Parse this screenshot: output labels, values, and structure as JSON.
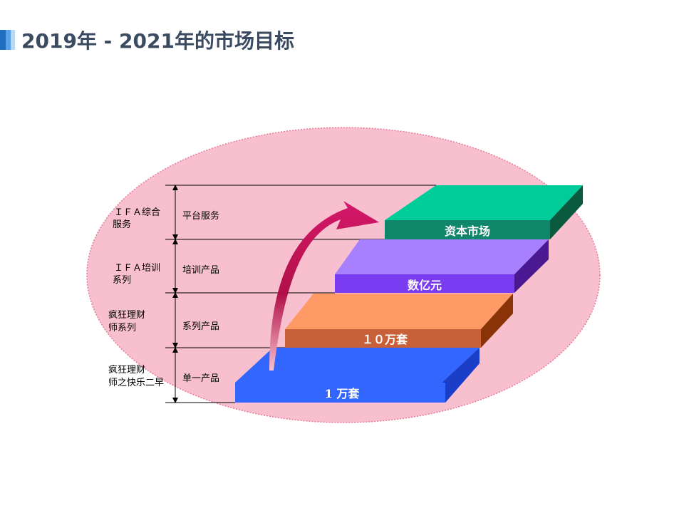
{
  "title": "2019年 - 2021年的市场目标",
  "colors": {
    "ellipse_fill": "#f8c0ce",
    "ellipse_border": "#e8789a",
    "arrow": "#c8185a",
    "step1": "#3366ff",
    "step2": "#ff9966",
    "step3": "#9966ff",
    "step4": "#00cc99"
  },
  "levels": [
    {
      "left_line1": "ＩＦＡ综合",
      "left_line2": "服务",
      "middle": "平台服务",
      "target": "资本市场"
    },
    {
      "left_line1": "ＩＦＡ培训",
      "left_line2": "系列",
      "middle": "培训产品",
      "target": "数亿元"
    },
    {
      "left_line1": "疯狂理财",
      "left_line2": "师系列",
      "middle": "系列产品",
      "target": "１０万套"
    },
    {
      "left_line1": "疯狂理财",
      "left_line2": "师之快乐二早",
      "middle": "单一产品",
      "target": "1 万套"
    }
  ]
}
